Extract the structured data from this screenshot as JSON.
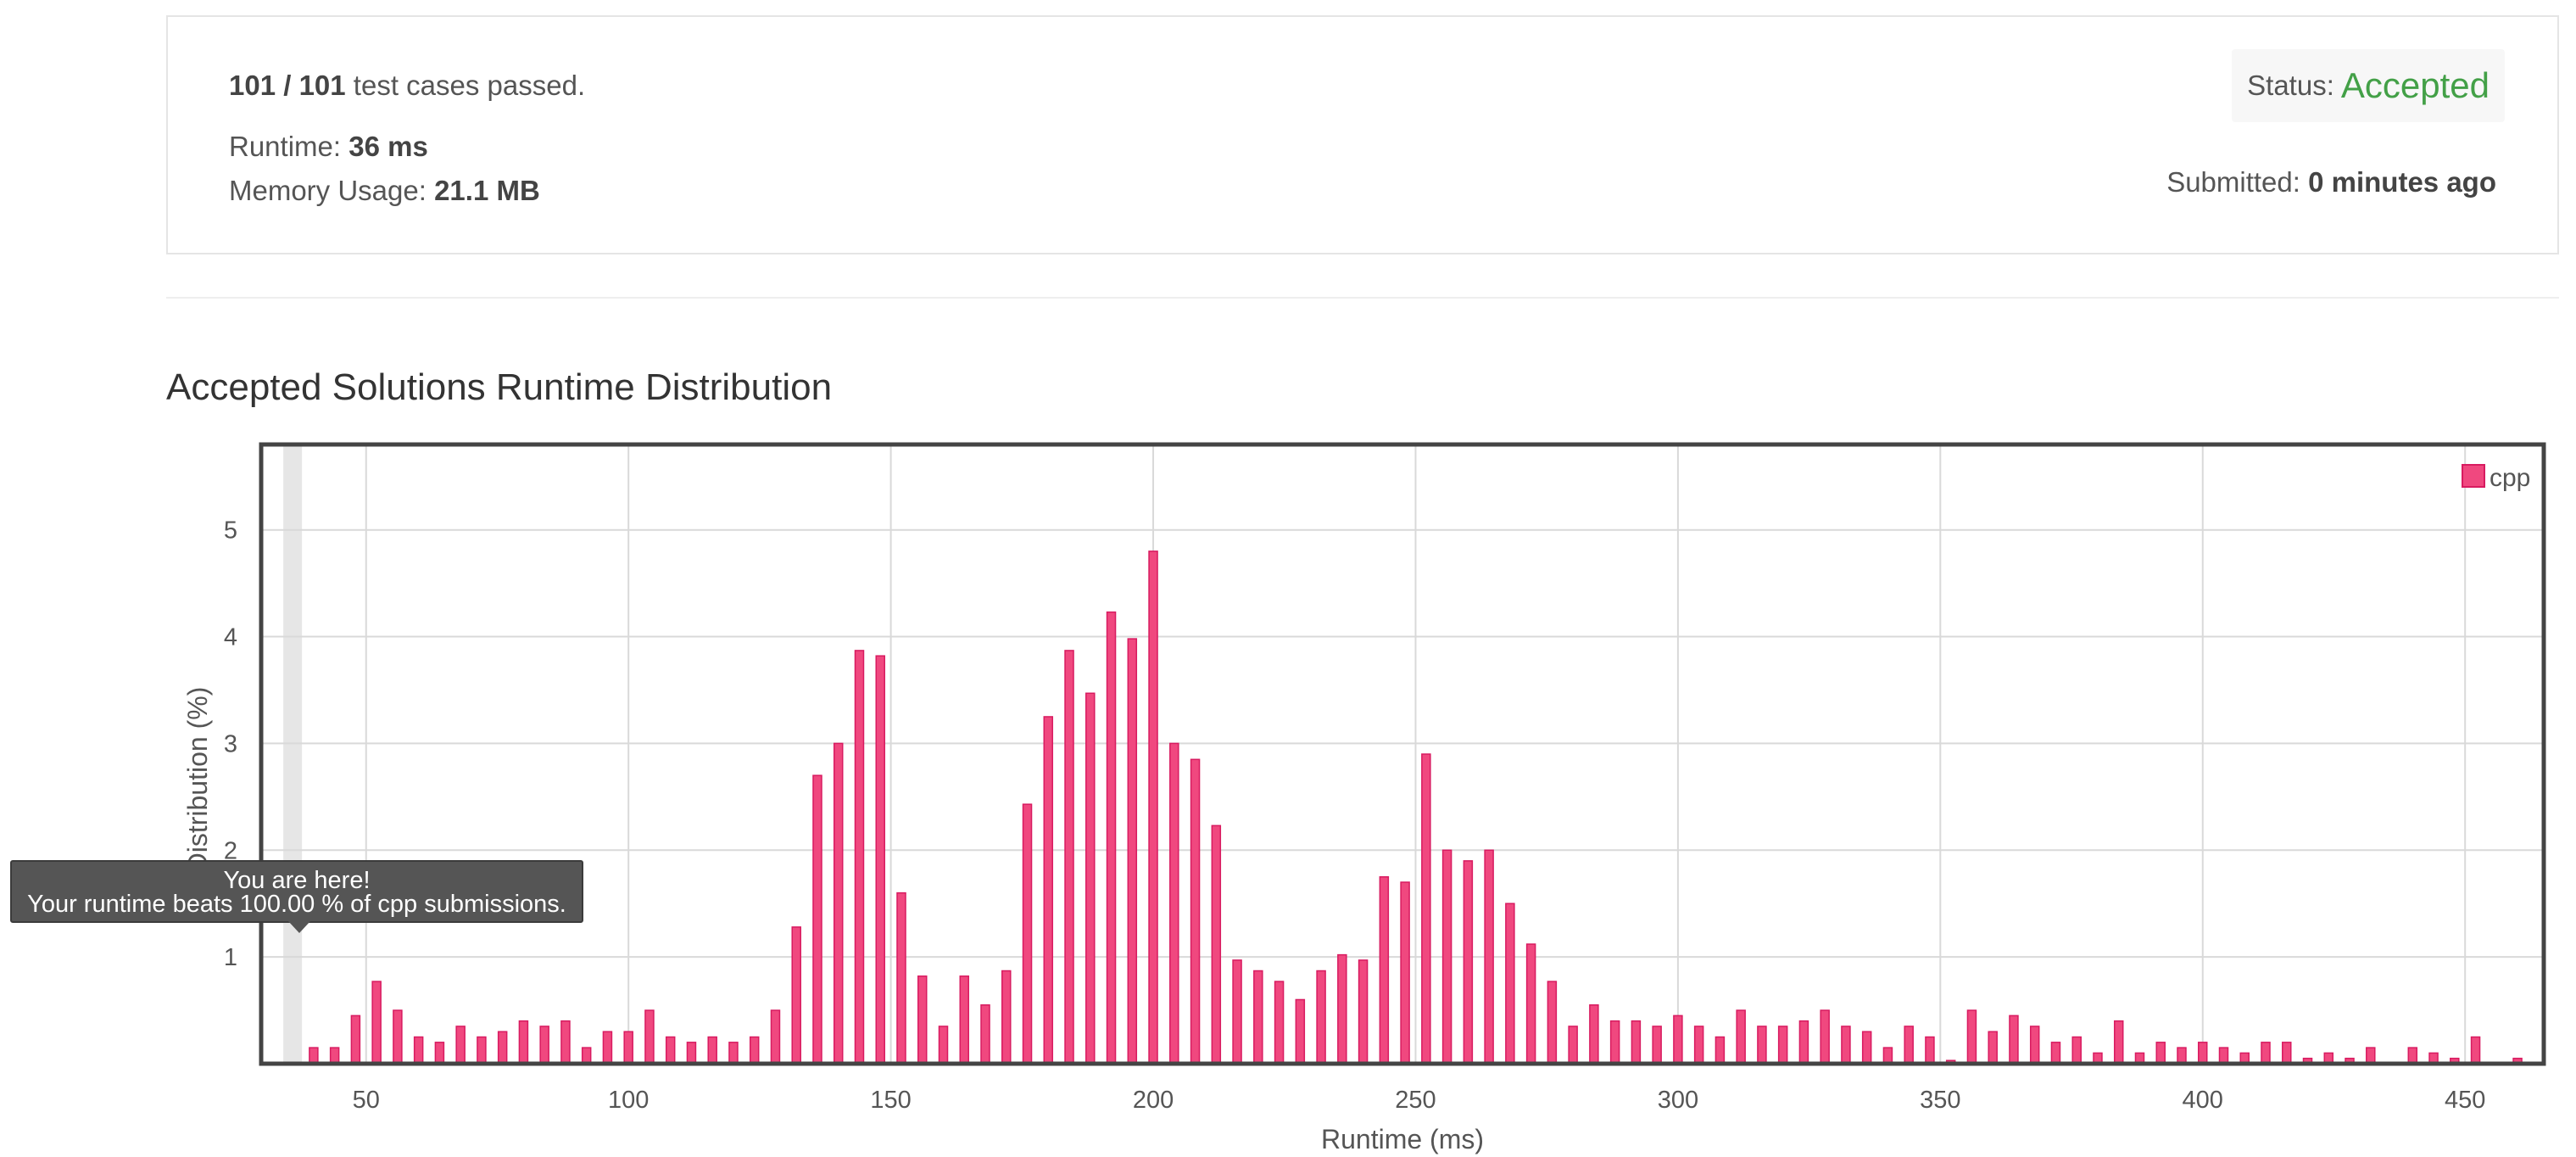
{
  "result": {
    "testcases_passed": "101 / 101",
    "testcases_suffix": "test cases passed.",
    "runtime_label": "Runtime:",
    "runtime_value": "36 ms",
    "memory_label": "Memory Usage:",
    "memory_value": "21.1 MB",
    "status_label": "Status:",
    "status_value": "Accepted",
    "submitted_label": "Submitted:",
    "submitted_value": "0 minutes ago"
  },
  "section_title": "Accepted Solutions Runtime Distribution",
  "tooltip": {
    "line1": "You are here!",
    "line2": "Your runtime beats 100.00 % of cpp submissions."
  },
  "colors": {
    "bar": "#f0487f",
    "bar_border": "#d81b60",
    "accepted": "#43a047",
    "highlight": "#e6e6e6"
  },
  "chart_data": {
    "type": "bar",
    "title": "",
    "xlabel": "Runtime (ms)",
    "ylabel": "Distribution (%)",
    "xlim": [
      30,
      465
    ],
    "ylim": [
      0,
      5.8
    ],
    "xticks": [
      50,
      100,
      150,
      200,
      250,
      300,
      350,
      400,
      450
    ],
    "yticks": [
      1,
      2,
      3,
      4,
      5
    ],
    "grid": true,
    "legend_position": "top-right",
    "highlight_x": 36,
    "series": [
      {
        "name": "cpp",
        "x": [
          40,
          44,
          48,
          52,
          56,
          60,
          64,
          68,
          72,
          76,
          80,
          84,
          88,
          92,
          96,
          100,
          104,
          108,
          112,
          116,
          120,
          124,
          128,
          132,
          136,
          140,
          144,
          148,
          152,
          156,
          160,
          164,
          168,
          172,
          176,
          180,
          184,
          188,
          192,
          196,
          200,
          204,
          208,
          212,
          216,
          220,
          224,
          228,
          232,
          236,
          240,
          244,
          248,
          252,
          256,
          260,
          264,
          268,
          272,
          276,
          280,
          284,
          288,
          292,
          296,
          300,
          304,
          308,
          312,
          316,
          320,
          324,
          328,
          332,
          336,
          340,
          344,
          348,
          352,
          356,
          360,
          364,
          368,
          372,
          376,
          380,
          384,
          388,
          392,
          396,
          400,
          404,
          408,
          412,
          416,
          420,
          424,
          428,
          432,
          436,
          440,
          444,
          448,
          452,
          456,
          460
        ],
        "values": [
          0.15,
          0.15,
          0.45,
          0.77,
          0.5,
          0.25,
          0.2,
          0.35,
          0.25,
          0.3,
          0.4,
          0.35,
          0.4,
          0.15,
          0.3,
          0.3,
          0.5,
          0.25,
          0.2,
          0.25,
          0.2,
          0.25,
          0.5,
          1.28,
          2.7,
          3.0,
          3.87,
          3.82,
          1.6,
          0.82,
          0.35,
          0.82,
          0.55,
          0.87,
          2.43,
          3.25,
          3.87,
          3.47,
          4.23,
          3.98,
          4.8,
          3.0,
          2.85,
          2.23,
          0.97,
          0.87,
          0.77,
          0.6,
          0.87,
          1.02,
          0.97,
          1.75,
          1.7,
          2.9,
          2.0,
          1.9,
          2.0,
          1.5,
          1.12,
          0.77,
          0.35,
          0.55,
          0.4,
          0.4,
          0.35,
          0.45,
          0.35,
          0.25,
          0.5,
          0.35,
          0.35,
          0.4,
          0.5,
          0.35,
          0.3,
          0.15,
          0.35,
          0.25,
          0.03,
          0.5,
          0.3,
          0.45,
          0.35,
          0.2,
          0.25,
          0.1,
          0.4,
          0.1,
          0.2,
          0.15,
          0.2,
          0.15,
          0.1,
          0.2,
          0.2,
          0.05,
          0.1,
          0.05,
          0.15,
          0.0,
          0.15,
          0.1,
          0.05,
          0.25,
          0.0,
          0.05
        ]
      }
    ]
  }
}
